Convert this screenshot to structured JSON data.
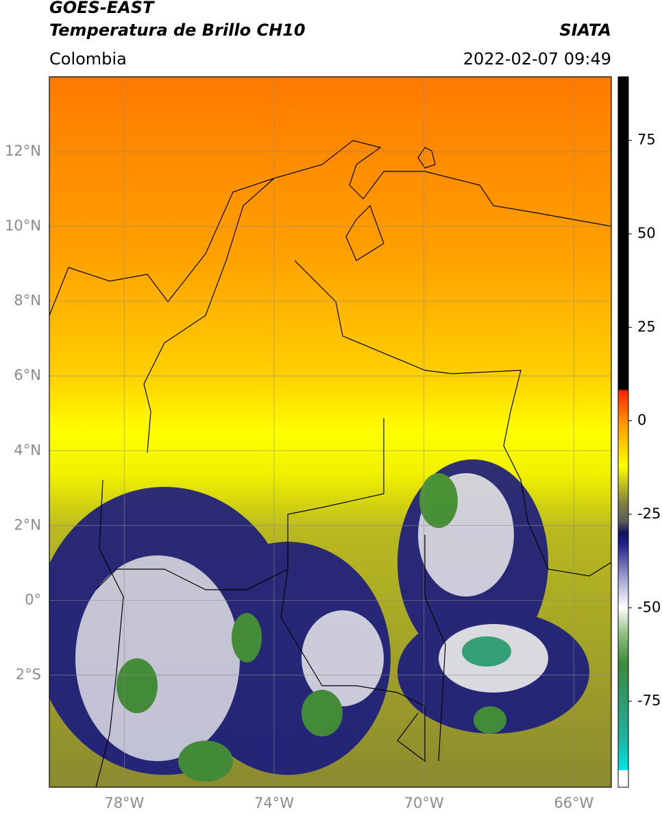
{
  "header": {
    "line1": "GOES-EAST",
    "title": "Temperatura de Brillo CH10",
    "source": "SIATA",
    "region": "Colombia",
    "timestamp": "2022-02-07 09:49"
  },
  "map": {
    "lonlim": [
      -80,
      -65
    ],
    "latlim": [
      -5,
      14
    ],
    "lonticks": [
      {
        "value": -78,
        "label": "78°W"
      },
      {
        "value": -74,
        "label": "74°W"
      },
      {
        "value": -70,
        "label": "70°W"
      },
      {
        "value": -66,
        "label": "66°W"
      }
    ],
    "latticks": [
      {
        "value": 12,
        "label": "12°N"
      },
      {
        "value": 10,
        "label": "10°N"
      },
      {
        "value": 8,
        "label": "8°N"
      },
      {
        "value": 6,
        "label": "6°N"
      },
      {
        "value": 4,
        "label": "4°N"
      },
      {
        "value": 2,
        "label": "2°N"
      },
      {
        "value": 0,
        "label": "0°"
      },
      {
        "value": -2,
        "label": "2°S"
      }
    ],
    "grid": true
  },
  "colorbar": {
    "lim": [
      -98,
      92
    ],
    "ticks": [
      75,
      50,
      25,
      0,
      -25,
      -50,
      -75
    ],
    "colormap": [
      {
        "value": -98,
        "color": "#ffffff"
      },
      {
        "value": -93.5,
        "color": "#ffffff"
      },
      {
        "value": -93.4,
        "color": "#00e5e5"
      },
      {
        "value": -85,
        "color": "#1fb4a0"
      },
      {
        "value": -75,
        "color": "#2e9a70"
      },
      {
        "value": -65,
        "color": "#3a8a3a"
      },
      {
        "value": -57,
        "color": "#8fbf80"
      },
      {
        "value": -50,
        "color": "#ffffff"
      },
      {
        "value": -42,
        "color": "#a0a0d0"
      },
      {
        "value": -33,
        "color": "#20208a"
      },
      {
        "value": -30,
        "color": "#101060"
      },
      {
        "value": -27,
        "color": "#5a5a5a"
      },
      {
        "value": -22,
        "color": "#808040"
      },
      {
        "value": -17,
        "color": "#c0c020"
      },
      {
        "value": -12,
        "color": "#ffff00"
      },
      {
        "value": -5,
        "color": "#ffc000"
      },
      {
        "value": 0,
        "color": "#ff9000"
      },
      {
        "value": 8,
        "color": "#ff2000"
      },
      {
        "value": 8.5,
        "color": "#000000"
      },
      {
        "value": 92,
        "color": "#000000"
      }
    ]
  }
}
